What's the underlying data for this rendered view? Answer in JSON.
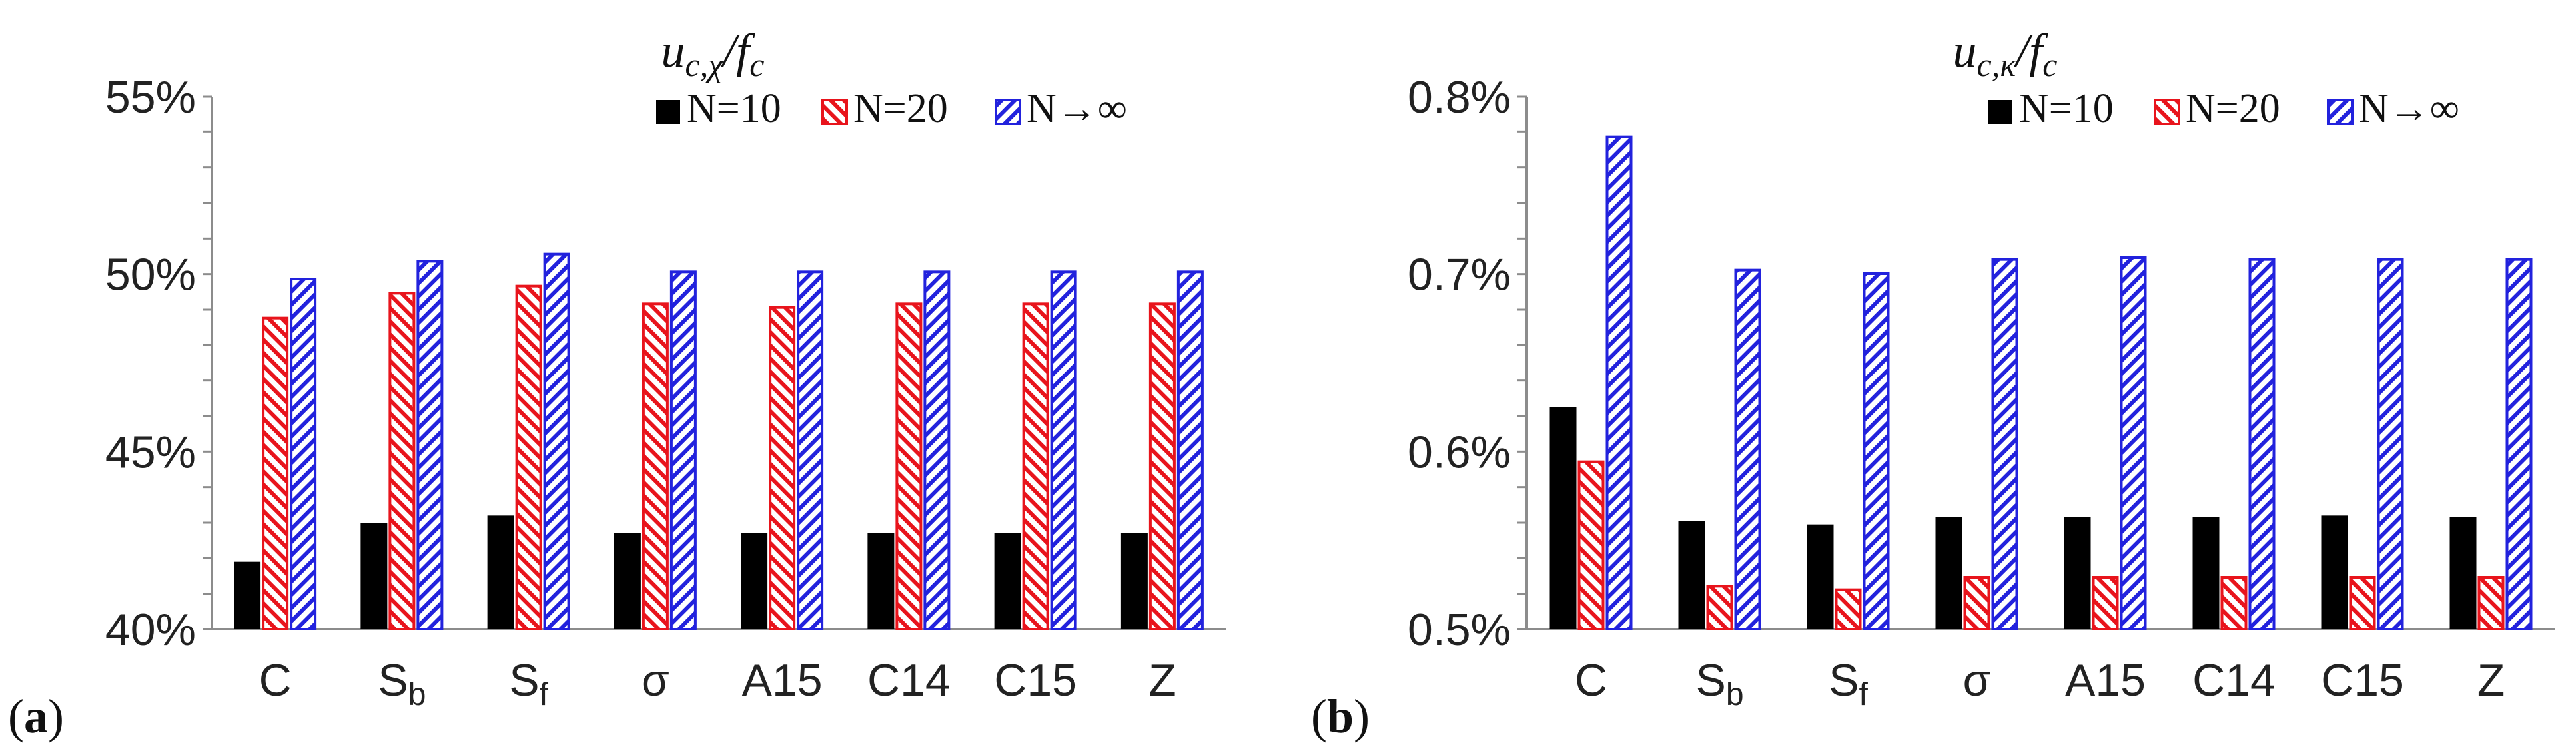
{
  "figure": {
    "panel_labels": [
      {
        "open": "(",
        "letter": "a",
        "close": ")"
      },
      {
        "open": "(",
        "letter": "b",
        "close": ")"
      }
    ]
  },
  "legend_labels": [
    "N=10",
    "N=20",
    "N→∞"
  ],
  "colors": {
    "n10": "#000000",
    "n20": "#e8141c",
    "ninf": "#2222dd",
    "axis": "#8c8c8c"
  },
  "chart_data": [
    {
      "type": "bar",
      "title_main": "u",
      "title_sub": "c,χ",
      "title_tail": "/f",
      "title_tail_sub": "c",
      "categories": [
        {
          "base": "C",
          "sub": ""
        },
        {
          "base": "S",
          "sub": "b"
        },
        {
          "base": "S",
          "sub": "f"
        },
        {
          "base": "σ",
          "sub": ""
        },
        {
          "base": "A15",
          "sub": ""
        },
        {
          "base": "C14",
          "sub": ""
        },
        {
          "base": "C15",
          "sub": ""
        },
        {
          "base": "Z",
          "sub": ""
        }
      ],
      "yticks": [
        "40%",
        "45%",
        "50%",
        "55%"
      ],
      "ylim": [
        0.4,
        0.55
      ],
      "ytick_values": [
        0.4,
        0.45,
        0.5,
        0.55
      ],
      "minor_tick_step": 0.01,
      "legend_position": "top-right",
      "series": [
        {
          "name": "N=10",
          "values": [
            0.419,
            0.43,
            0.432,
            0.427,
            0.427,
            0.427,
            0.427,
            0.427
          ]
        },
        {
          "name": "N=20",
          "values": [
            0.488,
            0.495,
            0.497,
            0.492,
            0.491,
            0.492,
            0.492,
            0.492
          ]
        },
        {
          "name": "N→∞",
          "values": [
            0.499,
            0.504,
            0.506,
            0.501,
            0.501,
            0.501,
            0.501,
            0.501
          ]
        }
      ]
    },
    {
      "type": "bar",
      "title_main": "u",
      "title_sub": "c,κ",
      "title_tail": "/f",
      "title_tail_sub": "c",
      "categories": [
        {
          "base": "C",
          "sub": ""
        },
        {
          "base": "S",
          "sub": "b"
        },
        {
          "base": "S",
          "sub": "f"
        },
        {
          "base": "σ",
          "sub": ""
        },
        {
          "base": "A15",
          "sub": ""
        },
        {
          "base": "C14",
          "sub": ""
        },
        {
          "base": "C15",
          "sub": ""
        },
        {
          "base": "Z",
          "sub": ""
        }
      ],
      "yticks": [
        "0.5%",
        "0.6%",
        "0.7%",
        "0.8%"
      ],
      "ylim": [
        0.005,
        0.008
      ],
      "ytick_values": [
        0.005,
        0.006,
        0.007,
        0.008
      ],
      "minor_tick_step": 0.0002,
      "legend_position": "top-right",
      "series": [
        {
          "name": "N=10",
          "values": [
            0.00625,
            0.00561,
            0.00559,
            0.00563,
            0.00563,
            0.00563,
            0.00564,
            0.00563
          ]
        },
        {
          "name": "N=20",
          "values": [
            0.00595,
            0.00525,
            0.00523,
            0.0053,
            0.0053,
            0.0053,
            0.0053,
            0.0053
          ]
        },
        {
          "name": "N→∞",
          "values": [
            0.00778,
            0.00703,
            0.00701,
            0.00709,
            0.0071,
            0.00709,
            0.00709,
            0.00709
          ]
        }
      ]
    }
  ]
}
